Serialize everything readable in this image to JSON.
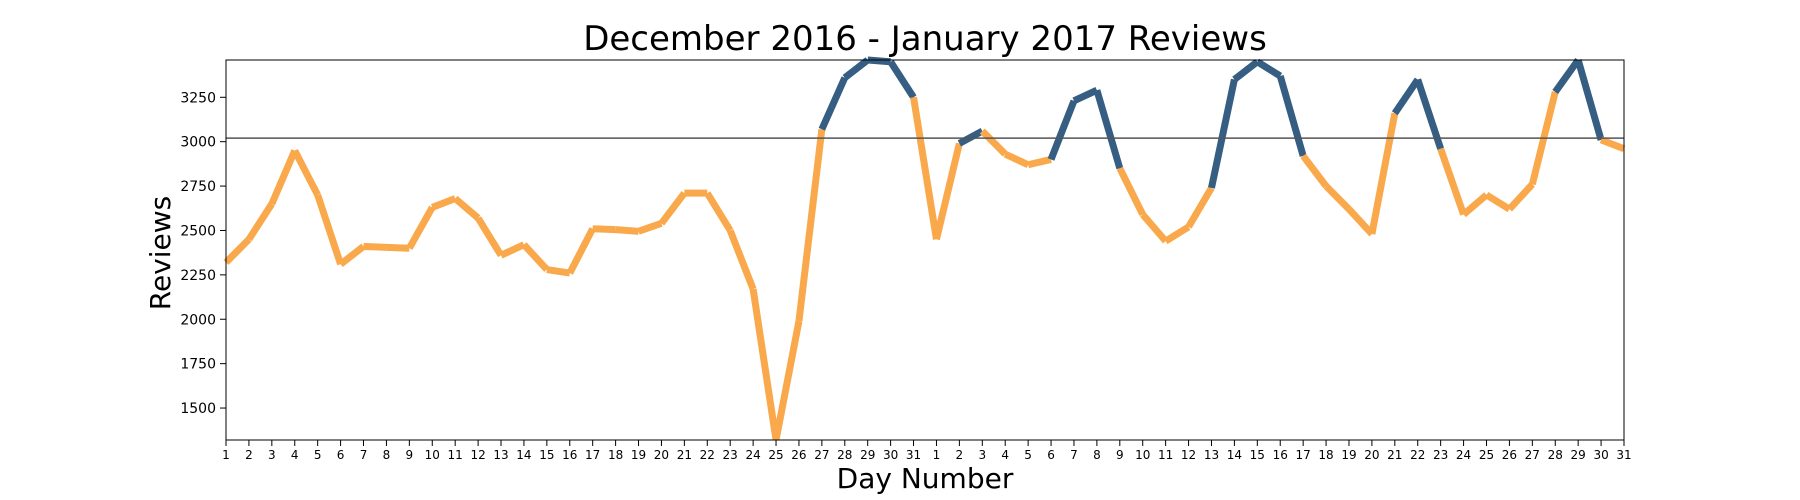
{
  "chart_data": {
    "type": "line",
    "title": "December 2016 - January 2017 Reviews",
    "xlabel": "Day Number",
    "ylabel": "Reviews",
    "categories": [
      "1",
      "2",
      "3",
      "4",
      "5",
      "6",
      "7",
      "8",
      "9",
      "10",
      "11",
      "12",
      "13",
      "14",
      "15",
      "16",
      "17",
      "18",
      "19",
      "20",
      "21",
      "22",
      "23",
      "24",
      "25",
      "26",
      "27",
      "28",
      "29",
      "30",
      "31",
      "1",
      "2",
      "3",
      "4",
      "5",
      "6",
      "7",
      "8",
      "9",
      "10",
      "11",
      "12",
      "13",
      "14",
      "15",
      "16",
      "17",
      "18",
      "19",
      "20",
      "21",
      "22",
      "23",
      "24",
      "25",
      "26",
      "27",
      "28",
      "29",
      "30",
      "31"
    ],
    "values": [
      2320,
      2450,
      2650,
      2950,
      2700,
      2310,
      2410,
      2405,
      2400,
      2630,
      2680,
      2570,
      2360,
      2420,
      2280,
      2260,
      2510,
      2505,
      2495,
      2540,
      2710,
      2710,
      2500,
      2170,
      1320,
      1990,
      3070,
      3360,
      3460,
      3450,
      3250,
      2450,
      2990,
      3060,
      2930,
      2870,
      2900,
      3230,
      3290,
      2850,
      2590,
      2440,
      2520,
      2740,
      3350,
      3450,
      3370,
      2920,
      2750,
      2620,
      2480,
      3160,
      3350,
      2960,
      2590,
      2700,
      2620,
      2760,
      3280,
      3460,
      3010,
      2960
    ],
    "threshold": 3020,
    "ylim": [
      1320,
      3460
    ],
    "yticks": [
      1500,
      1750,
      2000,
      2250,
      2500,
      2750,
      3000,
      3250
    ],
    "grid": false,
    "colors": {
      "below": "#f9a94b",
      "above": "#355e82",
      "threshold_line": "#555555"
    }
  }
}
